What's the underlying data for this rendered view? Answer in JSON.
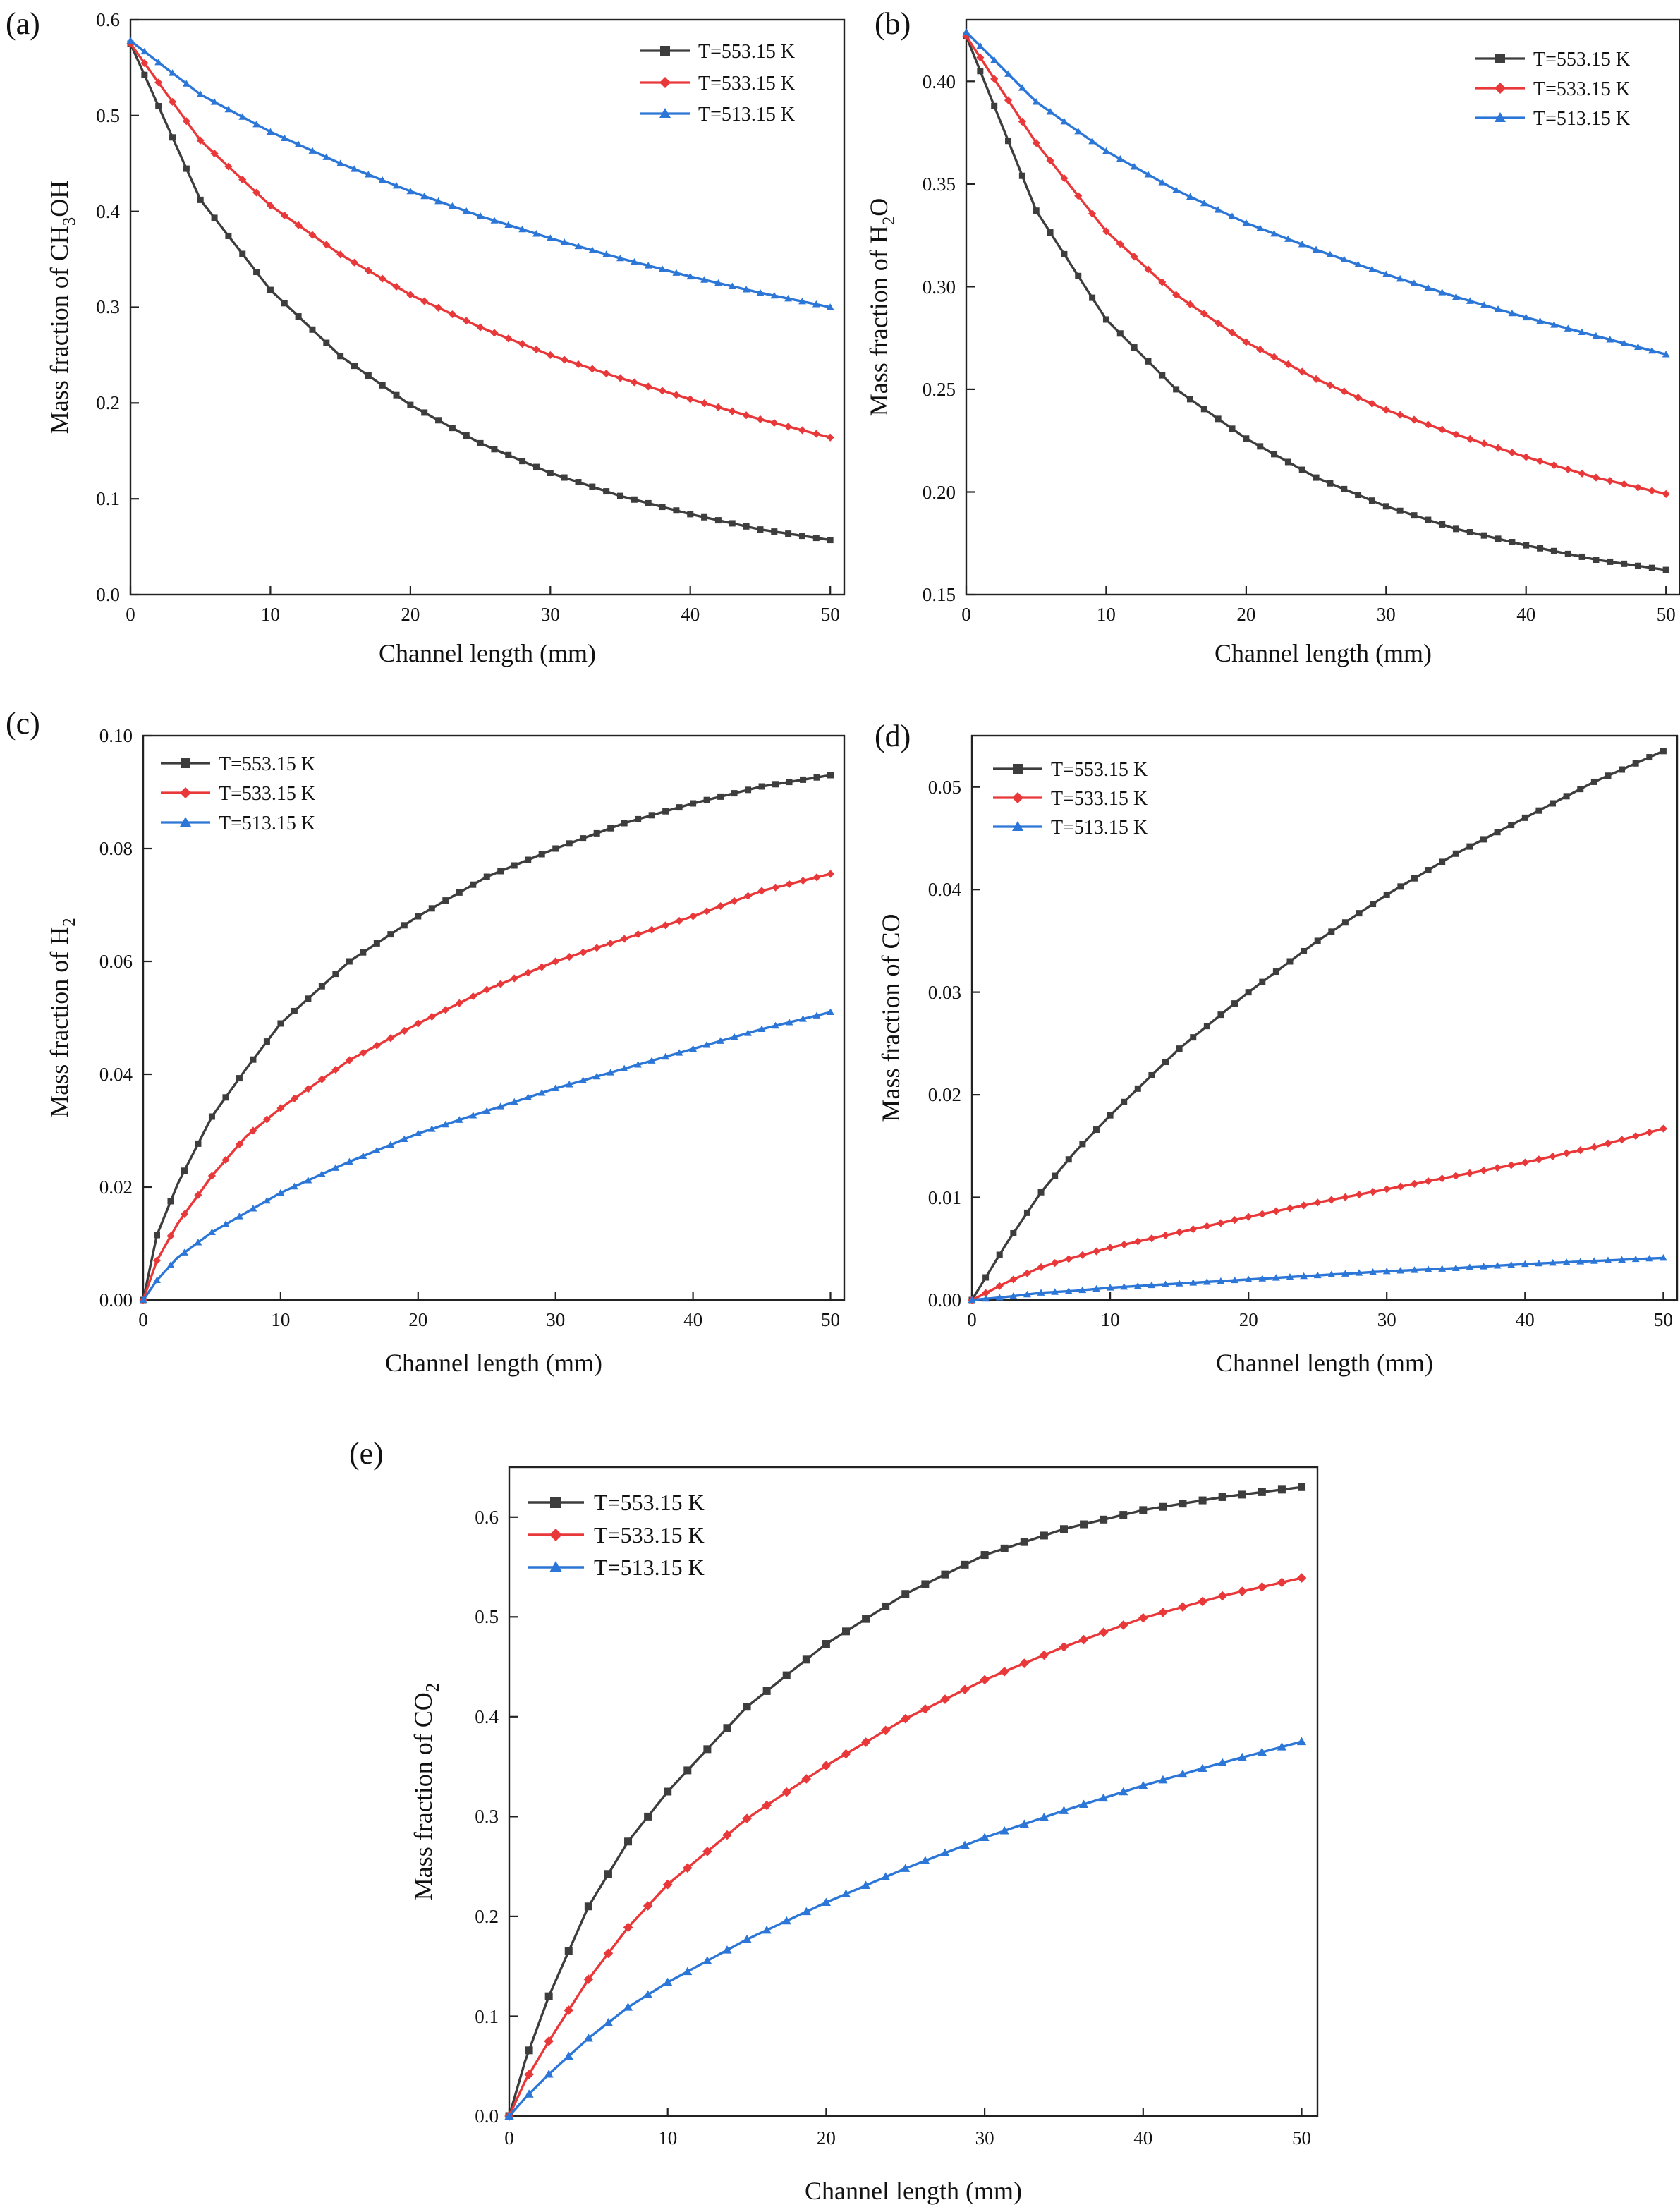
{
  "figure": {
    "x_axis_label": "Channel length (mm)"
  },
  "series_colors": {
    "T=553.15 K": "#3d3d3d",
    "T=533.15 K": "#e8383a",
    "T=513.15 K": "#2b76d6"
  },
  "series_markers": {
    "T=553.15 K": "square",
    "T=533.15 K": "diamond",
    "T=513.15 K": "triangle"
  },
  "chart_data": [
    {
      "panel": "(a)",
      "type": "line",
      "xlabel": "Channel length (mm)",
      "ylabel_prefix": "Mass fraction of CH",
      "ylabel_sub": "3",
      "ylabel_suffix": "OH",
      "xlim": [
        0,
        51
      ],
      "ylim": [
        0,
        0.6
      ],
      "xticks": [
        "0",
        "10",
        "20",
        "30",
        "40",
        "50"
      ],
      "yticks": [
        "0.0",
        "0.1",
        "0.2",
        "0.3",
        "0.4",
        "0.5",
        "0.6"
      ],
      "legend_position": "top-right",
      "grid": false,
      "x": [
        0,
        5,
        10,
        15,
        20,
        25,
        30,
        35,
        40,
        45,
        50
      ],
      "series": [
        {
          "name": "T=553.15 K",
          "values": [
            0.575,
            0.412,
            0.318,
            0.249,
            0.198,
            0.158,
            0.127,
            0.103,
            0.084,
            0.068,
            0.057
          ]
        },
        {
          "name": "T=533.15 K",
          "values": [
            0.575,
            0.474,
            0.406,
            0.355,
            0.313,
            0.279,
            0.25,
            0.226,
            0.204,
            0.183,
            0.164
          ]
        },
        {
          "name": "T=513.15 K",
          "values": [
            0.578,
            0.522,
            0.483,
            0.45,
            0.421,
            0.395,
            0.372,
            0.351,
            0.332,
            0.315,
            0.3
          ]
        }
      ]
    },
    {
      "panel": "(b)",
      "type": "line",
      "xlabel": "Channel length (mm)",
      "ylabel_prefix": "Mass fraction of H",
      "ylabel_sub": "2",
      "ylabel_suffix": "O",
      "xlim": [
        0,
        51
      ],
      "ylim": [
        0.15,
        0.43
      ],
      "xticks": [
        "0",
        "10",
        "20",
        "30",
        "40",
        "50"
      ],
      "yticks": [
        "0.15",
        "0.20",
        "0.25",
        "0.30",
        "0.35",
        "0.40"
      ],
      "legend_position": "top-right",
      "grid": false,
      "x": [
        0,
        5,
        10,
        15,
        20,
        25,
        30,
        35,
        40,
        45,
        50
      ],
      "series": [
        {
          "name": "T=553.15 K",
          "values": [
            0.422,
            0.337,
            0.284,
            0.25,
            0.226,
            0.207,
            0.193,
            0.182,
            0.174,
            0.167,
            0.162
          ]
        },
        {
          "name": "T=533.15 K",
          "values": [
            0.422,
            0.37,
            0.327,
            0.296,
            0.273,
            0.255,
            0.24,
            0.228,
            0.217,
            0.207,
            0.199
          ]
        },
        {
          "name": "T=513.15 K",
          "values": [
            0.424,
            0.39,
            0.366,
            0.347,
            0.331,
            0.318,
            0.306,
            0.295,
            0.285,
            0.276,
            0.267
          ]
        }
      ]
    },
    {
      "panel": "(c)",
      "type": "line",
      "xlabel": "Channel length (mm)",
      "ylabel_prefix": "Mass fraction of H",
      "ylabel_sub": "2",
      "ylabel_suffix": "",
      "xlim": [
        0,
        51
      ],
      "ylim": [
        0,
        0.1
      ],
      "xticks": [
        "0",
        "10",
        "20",
        "30",
        "40",
        "50"
      ],
      "yticks": [
        "0.00",
        "0.02",
        "0.04",
        "0.06",
        "0.08",
        "0.10"
      ],
      "legend_position": "top-left",
      "grid": false,
      "x": [
        0,
        1,
        2.5,
        5,
        7.5,
        10,
        15,
        20,
        25,
        30,
        35,
        40,
        45,
        50
      ],
      "series": [
        {
          "name": "T=553.15 K",
          "values": [
            0,
            0.0115,
            0.0205,
            0.0325,
            0.041,
            0.049,
            0.06,
            0.068,
            0.075,
            0.08,
            0.0845,
            0.088,
            0.091,
            0.093
          ]
        },
        {
          "name": "T=533.15 K",
          "values": [
            0,
            0.007,
            0.0135,
            0.022,
            0.029,
            0.034,
            0.0425,
            0.049,
            0.055,
            0.06,
            0.064,
            0.068,
            0.0725,
            0.0755
          ]
        },
        {
          "name": "T=513.15 K",
          "values": [
            0,
            0.0035,
            0.0075,
            0.012,
            0.0155,
            0.019,
            0.0245,
            0.0295,
            0.0335,
            0.0375,
            0.041,
            0.0445,
            0.048,
            0.051
          ]
        }
      ]
    },
    {
      "panel": "(d)",
      "type": "line",
      "xlabel": "Channel length (mm)",
      "ylabel_prefix": "Mass fraction of CO",
      "ylabel_sub": "",
      "ylabel_suffix": "",
      "xlim": [
        0,
        51
      ],
      "ylim": [
        0,
        0.055
      ],
      "xticks": [
        "0",
        "10",
        "20",
        "30",
        "40",
        "50"
      ],
      "yticks": [
        "0.00",
        "0.01",
        "0.02",
        "0.03",
        "0.04",
        "0.05"
      ],
      "legend_position": "top-left",
      "grid": false,
      "x": [
        0,
        2.5,
        5,
        7.5,
        10,
        15,
        20,
        25,
        30,
        35,
        40,
        45,
        50
      ],
      "series": [
        {
          "name": "T=553.15 K",
          "values": [
            0,
            0.0055,
            0.0105,
            0.0145,
            0.018,
            0.0245,
            0.03,
            0.035,
            0.0395,
            0.0435,
            0.047,
            0.0505,
            0.0535
          ]
        },
        {
          "name": "T=533.15 K",
          "values": [
            0,
            0.0017,
            0.0032,
            0.0042,
            0.0051,
            0.0066,
            0.0081,
            0.0095,
            0.0108,
            0.0121,
            0.0134,
            0.0149,
            0.0167
          ]
        },
        {
          "name": "T=513.15 K",
          "values": [
            0,
            0.0003,
            0.0007,
            0.0009,
            0.0012,
            0.0016,
            0.002,
            0.0024,
            0.0028,
            0.0031,
            0.0035,
            0.0038,
            0.0041
          ]
        }
      ]
    },
    {
      "panel": "(e)",
      "type": "line",
      "xlabel": "Channel length (mm)",
      "ylabel_prefix": "Mass fraction of CO",
      "ylabel_sub": "2",
      "ylabel_suffix": "",
      "xlim": [
        0,
        51
      ],
      "ylim": [
        0,
        0.65
      ],
      "xticks": [
        "0",
        "10",
        "20",
        "30",
        "40",
        "50"
      ],
      "yticks": [
        "0.0",
        "0.1",
        "0.2",
        "0.3",
        "0.4",
        "0.5",
        "0.6"
      ],
      "legend_position": "top-left",
      "grid": false,
      "x": [
        0,
        1,
        2.5,
        5,
        7.5,
        10,
        15,
        20,
        25,
        30,
        35,
        40,
        45,
        50
      ],
      "series": [
        {
          "name": "T=553.15 K",
          "values": [
            0,
            0.055,
            0.12,
            0.21,
            0.275,
            0.325,
            0.41,
            0.473,
            0.523,
            0.562,
            0.588,
            0.607,
            0.62,
            0.63
          ]
        },
        {
          "name": "T=533.15 K",
          "values": [
            0,
            0.035,
            0.075,
            0.137,
            0.189,
            0.232,
            0.298,
            0.351,
            0.398,
            0.437,
            0.47,
            0.499,
            0.521,
            0.539
          ]
        },
        {
          "name": "T=513.15 K",
          "values": [
            0,
            0.018,
            0.042,
            0.078,
            0.109,
            0.134,
            0.177,
            0.214,
            0.248,
            0.279,
            0.306,
            0.331,
            0.354,
            0.375
          ]
        }
      ]
    }
  ]
}
